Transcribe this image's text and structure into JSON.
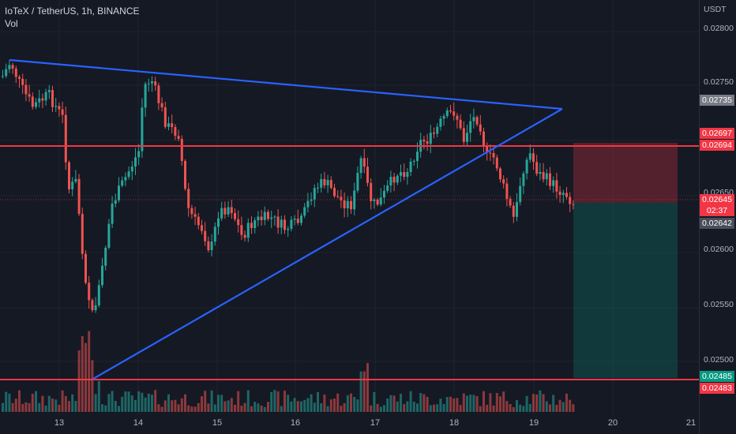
{
  "header": {
    "title": "IoTeX / TetherUS, 1h, BINANCE",
    "volume_label": "Vol"
  },
  "price_axis": {
    "unit": "USDT",
    "ticks": [
      "0.02800",
      "0.02750",
      "0.02650",
      "0.02600",
      "0.02550",
      "0.02500"
    ],
    "badges": {
      "gray_line": "0.02735",
      "red_top1": "0.02697",
      "red_top2": "0.02694",
      "last_price": "0.02645",
      "countdown": "02:37",
      "entry": "0.02642",
      "green_low": "0.02485",
      "red_low": "0.02483"
    }
  },
  "time_axis": {
    "labels": [
      "13",
      "14",
      "15",
      "16",
      "17",
      "18",
      "19",
      "20",
      "21"
    ]
  },
  "colors": {
    "bull": "#26a69a",
    "bear": "#ef5350",
    "trend": "#2962ff",
    "hline": "#f23645",
    "bg": "#151924"
  }
}
